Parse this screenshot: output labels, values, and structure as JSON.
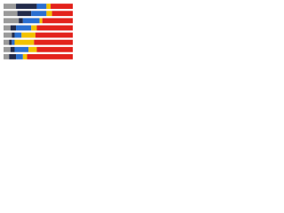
{
  "chart_data": {
    "type": "stacked-bar",
    "orientation": "horizontal",
    "categories": [
      null,
      null,
      null,
      null,
      null,
      null,
      null,
      null
    ],
    "xlim": [
      0,
      100
    ],
    "series": [
      {
        "color": "#9a9a9a",
        "values": [
          18,
          20,
          22,
          10,
          12,
          8,
          10,
          8
        ]
      },
      {
        "color": "#232b4a",
        "values": [
          30,
          20,
          6,
          8,
          4,
          4,
          6,
          10
        ]
      },
      {
        "color": "#2b6fd0",
        "values": [
          14,
          22,
          24,
          22,
          10,
          4,
          20,
          10
        ]
      },
      {
        "color": "#f2c200",
        "values": [
          6,
          8,
          4,
          8,
          20,
          28,
          12,
          6
        ]
      },
      {
        "color": "#e3221c",
        "values": [
          32,
          30,
          44,
          52,
          54,
          56,
          52,
          66
        ]
      }
    ]
  }
}
